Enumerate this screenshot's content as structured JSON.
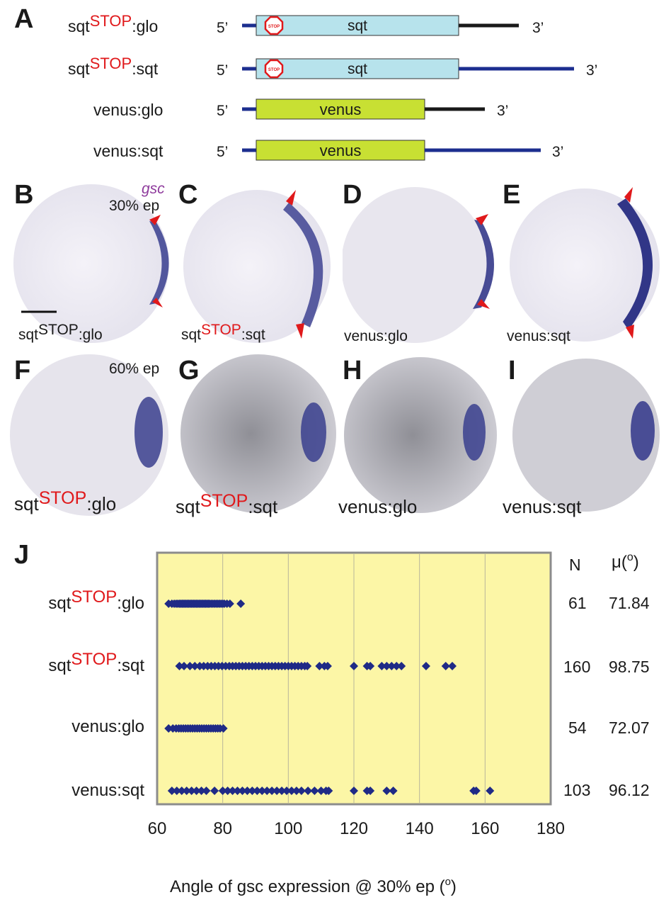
{
  "panels": {
    "A": "A",
    "B": "B",
    "C": "C",
    "D": "D",
    "E": "E",
    "F": "F",
    "G": "G",
    "H": "H",
    "I": "I",
    "J": "J"
  },
  "constructs": [
    {
      "prefix": "sqt",
      "sup": "STOP",
      "suffix": ":glo",
      "five": "5’",
      "three": "3’",
      "box_label": "sqt",
      "utr": "glo",
      "stop": true
    },
    {
      "prefix": "sqt",
      "sup": "STOP",
      "suffix": ":sqt",
      "five": "5’",
      "three": "3’",
      "box_label": "sqt",
      "utr": "sqt",
      "stop": true
    },
    {
      "prefix": "venus:glo",
      "sup": "",
      "suffix": "",
      "five": "5’",
      "three": "3’",
      "box_label": "venus",
      "utr": "glo",
      "stop": false
    },
    {
      "prefix": "venus:sqt",
      "sup": "",
      "suffix": "",
      "five": "5’",
      "three": "3’",
      "box_label": "venus",
      "utr": "sqt",
      "stop": false
    }
  ],
  "stop_sign_text": "STOP",
  "photos_30": [
    {
      "prefix": "sqt",
      "sup": "STOP",
      "suffix": ":glo"
    },
    {
      "prefix": "sqt",
      "sup": "STOP",
      "suffix": ":sqt"
    },
    {
      "prefix": "venus:glo",
      "sup": "",
      "suffix": ""
    },
    {
      "prefix": "venus:sqt",
      "sup": "",
      "suffix": ""
    }
  ],
  "photos_60": [
    {
      "prefix": "sqt",
      "sup": "STOP",
      "suffix": ":glo"
    },
    {
      "prefix": "sqt",
      "sup": "STOP",
      "suffix": ":sqt"
    },
    {
      "prefix": "venus:glo",
      "sup": "",
      "suffix": ""
    },
    {
      "prefix": "venus:sqt",
      "sup": "",
      "suffix": ""
    }
  ],
  "marker_gene": "gsc",
  "stage_30": "30% ep",
  "stage_60": "60% ep",
  "colors": {
    "utr_glo": "#1a1a1a",
    "utr_sqt": "#1c2e8f",
    "sqt_box": "#b7e3ec",
    "venus_box": "#c8e033",
    "stop_red": "#e0191b",
    "plot_bg": "#fcf6a6",
    "point": "#1f2a86",
    "stain": "#3b3f8c"
  },
  "chart_data": {
    "type": "scatter",
    "title": "",
    "xlabel": "Angle of gsc expression @ 30% ep (o)",
    "xlim": [
      60,
      180
    ],
    "xticks": [
      60,
      80,
      100,
      120,
      140,
      160,
      180
    ],
    "grid": "vertical",
    "stat_headers": {
      "n": "N",
      "mu": "μ(o)"
    },
    "series": [
      {
        "prefix": "sqt",
        "sup": "STOP",
        "suffix": ":glo",
        "n": "61",
        "mean": "71.84",
        "values": [
          63.5,
          64.5,
          65.2,
          65.8,
          66.3,
          66.8,
          67.2,
          67.6,
          68,
          68.4,
          68.8,
          69.2,
          69.6,
          70,
          70.4,
          70.8,
          71.2,
          71.6,
          72,
          72.4,
          72.8,
          73.2,
          73.6,
          74,
          74.4,
          74.8,
          75.2,
          75.6,
          76,
          76.5,
          77,
          77.5,
          78,
          78.5,
          79,
          79.5,
          80,
          80.5,
          81.3,
          82.2,
          85.5
        ]
      },
      {
        "prefix": "sqt",
        "sup": "STOP",
        "suffix": ":sqt",
        "n": "160",
        "mean": "98.75",
        "values": [
          66.8,
          68.2,
          70,
          71.5,
          73,
          74.2,
          75.4,
          76.5,
          77.6,
          78.7,
          79.8,
          80.9,
          82,
          83,
          84,
          85,
          86,
          87,
          88,
          89,
          90,
          91,
          92,
          93,
          94,
          95,
          96,
          97,
          98,
          99,
          100,
          101,
          102,
          103,
          104,
          105,
          105.8,
          109.5,
          111,
          112,
          120,
          124,
          125,
          128.5,
          130,
          131.5,
          133,
          134.5,
          142,
          148,
          150
        ]
      },
      {
        "prefix": "venus:glo",
        "sup": "",
        "suffix": "",
        "n": "54",
        "mean": "72.07",
        "values": [
          63.5,
          64.8,
          65.8,
          66.6,
          67.3,
          68,
          68.7,
          69.4,
          70.1,
          70.8,
          71.5,
          72.2,
          72.9,
          73.6,
          74.3,
          75,
          75.7,
          76.4,
          77.1,
          77.8,
          78.5,
          79.2,
          80.2
        ]
      },
      {
        "prefix": "venus:sqt",
        "sup": "",
        "suffix": "",
        "n": "103",
        "mean": "96.12",
        "values": [
          64.5,
          66,
          67.5,
          69,
          70.5,
          72,
          73.5,
          75,
          77.5,
          80,
          81.5,
          83,
          84.5,
          86,
          87.5,
          89,
          90.5,
          92,
          93.5,
          95,
          96.5,
          98,
          99.5,
          101,
          102.5,
          104,
          106,
          108,
          110,
          111.5,
          112.3,
          120,
          124,
          125,
          130,
          132,
          156.5,
          157.3,
          161.5
        ]
      }
    ]
  }
}
